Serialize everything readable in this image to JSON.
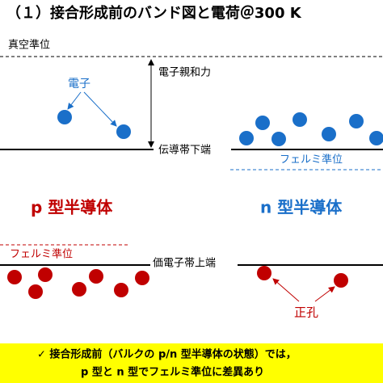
{
  "header": {
    "title": "（１）接合形成前のバンド図と電荷＠300 K"
  },
  "labels": {
    "vacuum_level": "真空準位",
    "electron_affinity": "電子親和力",
    "electron": "電子",
    "conduction_band": "伝導帯下端",
    "fermi_n": "フェルミ準位",
    "p_type": "p 型半導体",
    "n_type": "n 型半導体",
    "fermi_p": "フェルミ準位",
    "valence_band": "価電子帯上端",
    "hole": "正孔"
  },
  "note": {
    "lines": [
      "✓ 接合形成前（バルクの p/n 型半導体の状態）では，",
      "p 型と n 型でフェルミ準位に差異あり"
    ]
  }
}
